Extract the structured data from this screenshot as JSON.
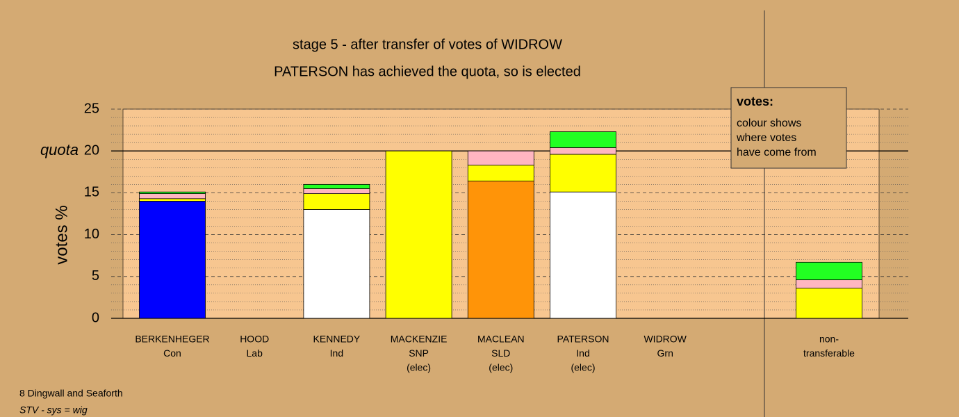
{
  "chart_data": {
    "type": "bar",
    "stacked": true,
    "title": "stage 5 - after transfer of votes of WIDROW",
    "subtitle": "PATERSON has achieved the quota, so is elected",
    "ylabel": "votes %",
    "categories": [
      [
        "BERKENHEGER",
        "Con"
      ],
      [
        "HOOD",
        "Lab"
      ],
      [
        "KENNEDY",
        "Ind"
      ],
      [
        "MACKENZIE",
        "SNP",
        "(elec)"
      ],
      [
        "MACLEAN",
        "SLD",
        "(elec)"
      ],
      [
        "PATERSON",
        "Ind",
        "(elec)"
      ],
      [
        "WIDROW",
        "Grn"
      ],
      [
        "non-",
        "transferable"
      ]
    ],
    "series": [
      {
        "color": "#0000ff",
        "values": [
          14.0,
          0,
          0,
          0,
          0,
          0,
          0,
          0
        ]
      },
      {
        "color": "#ffffff",
        "values": [
          0,
          0,
          13.0,
          0,
          0,
          15.1,
          0,
          0
        ]
      },
      {
        "color": "#ff9408",
        "values": [
          0,
          0,
          0,
          0,
          16.4,
          0,
          0,
          0
        ]
      },
      {
        "color": "#ffff00",
        "values": [
          0.3,
          0,
          1.9,
          20.0,
          1.9,
          4.5,
          0,
          3.6
        ]
      },
      {
        "color": "#ffb6c1",
        "values": [
          0.6,
          0,
          0.6,
          0,
          1.7,
          0.8,
          0,
          1.0
        ]
      },
      {
        "color": "#22ff22",
        "values": [
          0.2,
          0,
          0.5,
          0,
          0,
          1.9,
          0,
          2.1
        ]
      }
    ],
    "ylim": [
      0,
      25
    ],
    "yticks": [
      0,
      5,
      10,
      15,
      20,
      25
    ],
    "minor_yticks": [
      1,
      2,
      3,
      4,
      6,
      7,
      8,
      9,
      11,
      12,
      13,
      14,
      16,
      17,
      18,
      19,
      21,
      22,
      23,
      24
    ],
    "quota": {
      "value": 20,
      "label": "quota"
    },
    "legend": {
      "title": "votes:",
      "lines": [
        "colour shows",
        "where votes",
        "have come from"
      ]
    },
    "footer": [
      "8 Dingwall and Seaforth",
      "STV - sys = wig"
    ]
  }
}
